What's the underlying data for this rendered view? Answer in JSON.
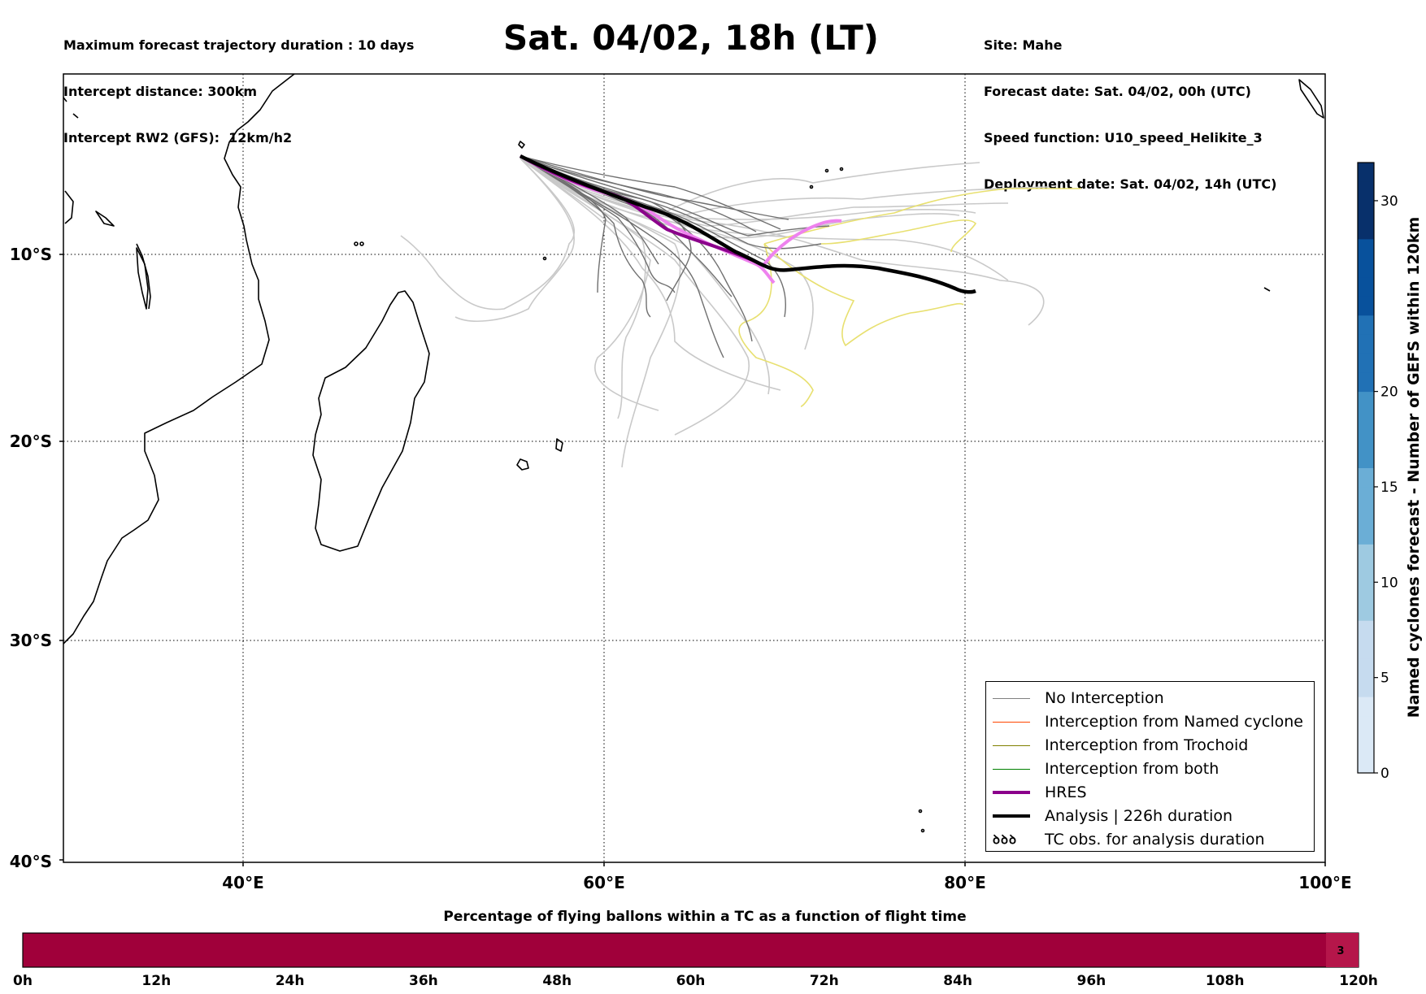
{
  "header": {
    "left": [
      "Maximum forecast trajectory duration : 10 days",
      "Intercept distance: 300km",
      "Intercept RW2 (GFS):  12km/h2"
    ],
    "title": "Sat. 04/02, 18h (LT)",
    "right": [
      "Site: Mahe",
      "Forecast date: Sat. 04/02, 00h (UTC)",
      "Speed function: U10_speed_Helikite_3",
      "Deployment date: Sat. 04/02, 14h (UTC)"
    ]
  },
  "map": {
    "lon_ticks": [
      "40°E",
      "60°E",
      "80°E",
      "100°E"
    ],
    "lat_ticks": [
      "10°S",
      "20°S",
      "30°S",
      "40°S"
    ],
    "lon_range": [
      30,
      100
    ],
    "lat_range": [
      -40,
      -0.3
    ],
    "grid": "dotted",
    "launch_site": "Mahe"
  },
  "legend": {
    "items": [
      {
        "label": "No Interception",
        "color": "#808080",
        "style": "thin"
      },
      {
        "label": "Interception from Named cyclone",
        "color": "#ff4500",
        "style": "thin"
      },
      {
        "label": "Interception from Trochoid",
        "color": "#808000",
        "style": "thin"
      },
      {
        "label": "Interception from both",
        "color": "#008000",
        "style": "thin"
      },
      {
        "label": "HRES",
        "color": "#8b008b",
        "style": "thick"
      },
      {
        "label": "Analysis | 226h duration",
        "color": "#000000",
        "style": "thick"
      },
      {
        "label": "TC obs. for analysis duration",
        "color": "#000000",
        "style": "glyph",
        "glyph": "ꝺꝺꝺ"
      }
    ]
  },
  "colorbar": {
    "label": "Named cyclones forecast - Number of GEFS within 120km",
    "ticks": [
      "0",
      "5",
      "10",
      "15",
      "20",
      "30"
    ],
    "tick_values": [
      0,
      5,
      10,
      15,
      20,
      30
    ],
    "range": [
      0,
      32
    ],
    "colors": [
      "#dbe9f6",
      "#c6dbef",
      "#9ecae1",
      "#6baed6",
      "#4292c6",
      "#2171b5",
      "#08519c",
      "#08306b"
    ]
  },
  "timebar": {
    "title": "Percentage of flying ballons within a TC as a function of flight time",
    "ticks": [
      "0h",
      "12h",
      "24h",
      "36h",
      "48h",
      "60h",
      "72h",
      "84h",
      "96h",
      "108h",
      "120h"
    ],
    "value_label": "3",
    "color": "#a0003a"
  }
}
